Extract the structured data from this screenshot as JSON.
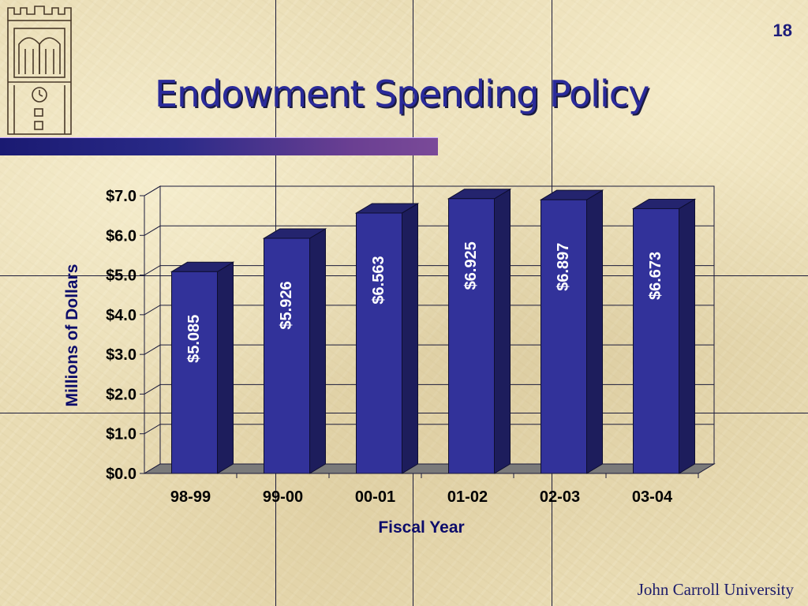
{
  "page_number": "18",
  "slide_title": "Endowment Spending Policy",
  "footer": "John Carroll University",
  "colors": {
    "bar_front": "#32329a",
    "bar_side": "#1d1d5c",
    "title": "#2a2a9a",
    "accent_bar": "#1a1a72"
  },
  "logo_icon": "clock-tower-icon",
  "chart_data": {
    "type": "bar",
    "title": "",
    "xlabel": "Fiscal Year",
    "ylabel": "Millions of Dollars",
    "categories": [
      "98-99",
      "99-00",
      "00-01",
      "01-02",
      "02-03",
      "03-04"
    ],
    "values": [
      5.085,
      5.926,
      6.563,
      6.925,
      6.897,
      6.673
    ],
    "data_labels": [
      "$5.085",
      "$5.926",
      "$6.563",
      "$6.925",
      "$6.897",
      "$6.673"
    ],
    "yticks": [
      "$0.0",
      "$1.0",
      "$2.0",
      "$3.0",
      "$4.0",
      "$5.0",
      "$6.0",
      "$7.0"
    ],
    "ylim": [
      0,
      7
    ],
    "grid": true,
    "legend": "none",
    "style": "3d-column"
  }
}
